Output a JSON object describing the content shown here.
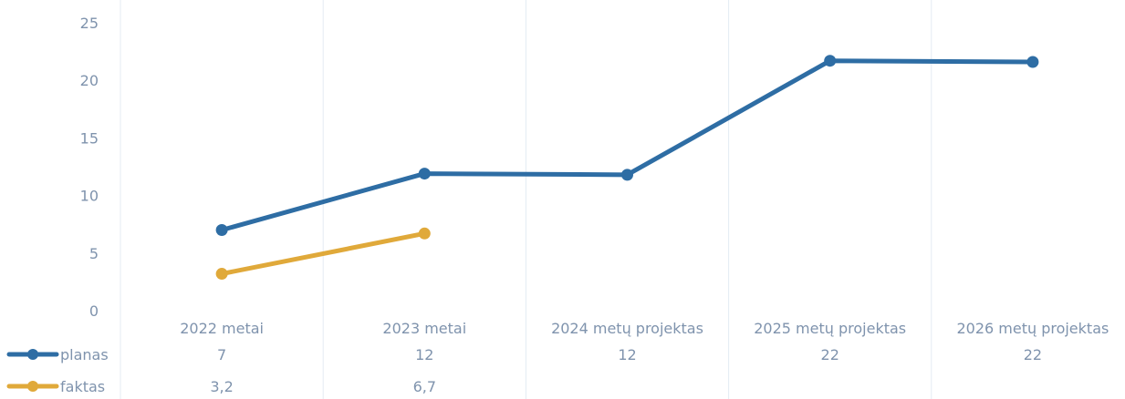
{
  "chart_data": {
    "type": "line",
    "categories": [
      "2022 metai",
      "2023 metai",
      "2024 metų projektas",
      "2025 metų  projektas",
      "2026 metų  projektas"
    ],
    "ylim": [
      0,
      25
    ],
    "yticks": [
      "0",
      "5",
      "10",
      "15",
      "20",
      "25"
    ],
    "grid": true,
    "legend_placement": "bottom-left data table",
    "series": [
      {
        "name": "planas",
        "color": "#2e6da4",
        "values": [
          7,
          11.9,
          11.8,
          21.7,
          21.6
        ],
        "table_values": [
          "7",
          "12",
          "12",
          "22",
          "22"
        ]
      },
      {
        "name": "faktas",
        "color": "#e0a93a",
        "values": [
          3.2,
          6.7,
          null,
          null,
          null
        ],
        "table_values": [
          "3,2",
          "6,7",
          "",
          "",
          ""
        ]
      }
    ]
  }
}
